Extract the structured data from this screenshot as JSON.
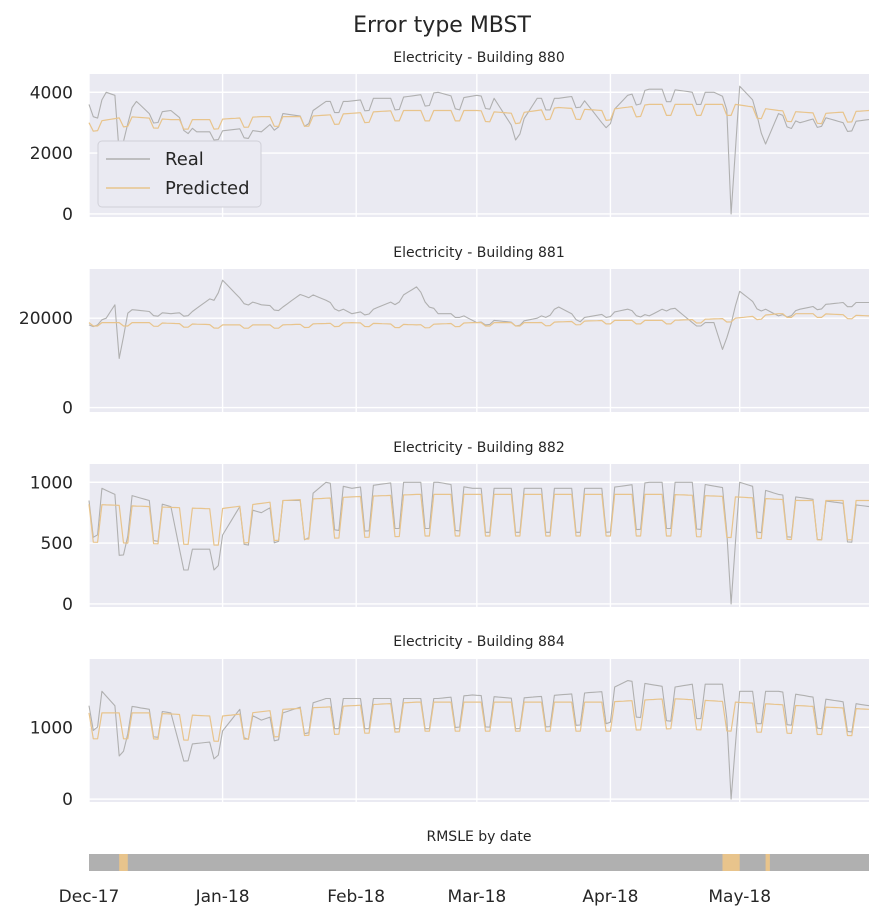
{
  "figure_title": "Error type MBST",
  "colors": {
    "real": "#b0b0b0",
    "predicted": "#e8c48c",
    "panel_bg": "#eaeaf2",
    "grid": "#ffffff",
    "rmsle_base": "#b0b0b0",
    "rmsle_high": "#e8c48c"
  },
  "legend": {
    "real": "Real",
    "predicted": "Predicted"
  },
  "x_axis": {
    "start": "2017-12-01",
    "end": "2018-05-31",
    "tick_labels": [
      "Dec-17",
      "Jan-18",
      "Feb-18",
      "Mar-18",
      "Apr-18",
      "May-18"
    ],
    "tick_dates": [
      "2017-12-01",
      "2018-01-01",
      "2018-02-01",
      "2018-03-01",
      "2018-04-01",
      "2018-05-01"
    ]
  },
  "chart_data": [
    {
      "type": "line",
      "title": "Electricity - Building 880",
      "ylim": [
        -100,
        4600
      ],
      "yticks": [
        0,
        2000,
        4000
      ],
      "ytick_labels": [
        "0",
        "2000",
        "4000"
      ],
      "legend_position": "center-left",
      "series": [
        {
          "name": "Real",
          "color": "#b0b0b0",
          "anchors": [
            [
              "2017-12-01",
              3600
            ],
            [
              "2017-12-03",
              3500
            ],
            [
              "2017-12-05",
              4000
            ],
            [
              "2017-12-07",
              3900
            ],
            [
              "2017-12-08",
              2000
            ],
            [
              "2017-12-10",
              3300
            ],
            [
              "2017-12-12",
              3700
            ],
            [
              "2017-12-15",
              3300
            ],
            [
              "2017-12-20",
              3400
            ],
            [
              "2017-12-26",
              2700
            ],
            [
              "2017-12-30",
              2700
            ],
            [
              "2018-01-05",
              2800
            ],
            [
              "2018-01-10",
              2700
            ],
            [
              "2018-01-15",
              3300
            ],
            [
              "2018-01-20",
              3200
            ],
            [
              "2018-01-25",
              3700
            ],
            [
              "2018-01-30",
              3700
            ],
            [
              "2018-02-05",
              3800
            ],
            [
              "2018-02-10",
              3800
            ],
            [
              "2018-02-15",
              3900
            ],
            [
              "2018-02-20",
              4000
            ],
            [
              "2018-02-25",
              3800
            ],
            [
              "2018-03-01",
              3900
            ],
            [
              "2018-03-05",
              3800
            ],
            [
              "2018-03-10",
              2700
            ],
            [
              "2018-03-15",
              3800
            ],
            [
              "2018-03-20",
              3800
            ],
            [
              "2018-03-25",
              3900
            ],
            [
              "2018-03-30",
              3000
            ],
            [
              "2018-04-05",
              3900
            ],
            [
              "2018-04-10",
              4100
            ],
            [
              "2018-04-15",
              4100
            ],
            [
              "2018-04-20",
              4000
            ],
            [
              "2018-04-25",
              4000
            ],
            [
              "2018-04-28",
              3800
            ],
            [
              "2018-04-29",
              0
            ],
            [
              "2018-05-01",
              4200
            ],
            [
              "2018-05-05",
              3600
            ],
            [
              "2018-05-07",
              2300
            ],
            [
              "2018-05-10",
              3300
            ],
            [
              "2018-05-15",
              3000
            ],
            [
              "2018-05-20",
              3200
            ],
            [
              "2018-05-25",
              3000
            ],
            [
              "2018-05-31",
              3100
            ]
          ]
        },
        {
          "name": "Predicted",
          "color": "#e8c48c",
          "anchors": [
            [
              "2017-12-01",
              3000
            ],
            [
              "2017-12-10",
              3200
            ],
            [
              "2017-12-20",
              3100
            ],
            [
              "2017-12-30",
              3100
            ],
            [
              "2018-01-10",
              3200
            ],
            [
              "2018-01-20",
              3200
            ],
            [
              "2018-01-30",
              3300
            ],
            [
              "2018-02-10",
              3400
            ],
            [
              "2018-02-20",
              3400
            ],
            [
              "2018-03-01",
              3400
            ],
            [
              "2018-03-10",
              3300
            ],
            [
              "2018-03-20",
              3500
            ],
            [
              "2018-03-30",
              3400
            ],
            [
              "2018-04-10",
              3600
            ],
            [
              "2018-04-20",
              3600
            ],
            [
              "2018-04-30",
              3600
            ],
            [
              "2018-05-10",
              3400
            ],
            [
              "2018-05-20",
              3300
            ],
            [
              "2018-05-31",
              3400
            ]
          ]
        }
      ]
    },
    {
      "type": "line",
      "title": "Electricity - Building 881",
      "ylim": [
        -1000,
        31000
      ],
      "yticks": [
        0,
        20000
      ],
      "ytick_labels": [
        "0",
        "20000"
      ],
      "series": [
        {
          "name": "Real",
          "color": "#b0b0b0",
          "anchors": [
            [
              "2017-12-01",
              18500
            ],
            [
              "2017-12-05",
              20000
            ],
            [
              "2017-12-07",
              23000
            ],
            [
              "2017-12-08",
              11000
            ],
            [
              "2017-12-10",
              22000
            ],
            [
              "2017-12-15",
              21500
            ],
            [
              "2017-12-20",
              21000
            ],
            [
              "2017-12-25",
              21500
            ],
            [
              "2017-12-30",
              25000
            ],
            [
              "2018-01-01",
              28500
            ],
            [
              "2018-01-05",
              24500
            ],
            [
              "2018-01-10",
              23000
            ],
            [
              "2018-01-15",
              22500
            ],
            [
              "2018-01-20",
              26000
            ],
            [
              "2018-01-25",
              24000
            ],
            [
              "2018-01-31",
              21000
            ],
            [
              "2018-02-05",
              22000
            ],
            [
              "2018-02-10",
              24000
            ],
            [
              "2018-02-15",
              27000
            ],
            [
              "2018-02-20",
              21000
            ],
            [
              "2018-02-25",
              21000
            ],
            [
              "2018-03-01",
              19000
            ],
            [
              "2018-03-05",
              19500
            ],
            [
              "2018-03-10",
              19000
            ],
            [
              "2018-03-15",
              20000
            ],
            [
              "2018-03-20",
              22500
            ],
            [
              "2018-03-25",
              20000
            ],
            [
              "2018-03-31",
              21000
            ],
            [
              "2018-04-05",
              22000
            ],
            [
              "2018-04-10",
              20500
            ],
            [
              "2018-04-15",
              23000
            ],
            [
              "2018-04-20",
              19000
            ],
            [
              "2018-04-25",
              19000
            ],
            [
              "2018-04-27",
              13000
            ],
            [
              "2018-05-01",
              26000
            ],
            [
              "2018-05-05",
              23000
            ],
            [
              "2018-05-10",
              20500
            ],
            [
              "2018-05-15",
              22000
            ],
            [
              "2018-05-20",
              23000
            ],
            [
              "2018-05-25",
              23500
            ],
            [
              "2018-05-31",
              23500
            ]
          ]
        },
        {
          "name": "Predicted",
          "color": "#e8c48c",
          "anchors": [
            [
              "2017-12-01",
              19000
            ],
            [
              "2017-12-15",
              19000
            ],
            [
              "2017-12-31",
              18500
            ],
            [
              "2018-01-15",
              18500
            ],
            [
              "2018-01-31",
              19000
            ],
            [
              "2018-02-15",
              18500
            ],
            [
              "2018-02-28",
              19000
            ],
            [
              "2018-03-15",
              19000
            ],
            [
              "2018-03-31",
              19500
            ],
            [
              "2018-04-15",
              19500
            ],
            [
              "2018-04-30",
              20000
            ],
            [
              "2018-05-10",
              21000
            ],
            [
              "2018-05-20",
              21000
            ],
            [
              "2018-05-31",
              20500
            ]
          ]
        }
      ]
    },
    {
      "type": "line",
      "title": "Electricity - Building 882",
      "ylim": [
        -25,
        1150
      ],
      "yticks": [
        0,
        500,
        1000
      ],
      "ytick_labels": [
        "0",
        "500",
        "1000"
      ],
      "series": [
        {
          "name": "Real",
          "color": "#b0b0b0",
          "anchors": [
            [
              "2017-12-01",
              850
            ],
            [
              "2017-12-04",
              950
            ],
            [
              "2017-12-07",
              900
            ],
            [
              "2017-12-08",
              400
            ],
            [
              "2017-12-10",
              900
            ],
            [
              "2017-12-15",
              850
            ],
            [
              "2017-12-20",
              800
            ],
            [
              "2017-12-22",
              450
            ],
            [
              "2017-12-30",
              450
            ],
            [
              "2018-01-05",
              800
            ],
            [
              "2018-01-10",
              750
            ],
            [
              "2018-01-15",
              850
            ],
            [
              "2018-01-20",
              850
            ],
            [
              "2018-01-25",
              1000
            ],
            [
              "2018-01-31",
              950
            ],
            [
              "2018-02-10",
              1000
            ],
            [
              "2018-02-20",
              1000
            ],
            [
              "2018-02-28",
              950
            ],
            [
              "2018-03-10",
              950
            ],
            [
              "2018-03-20",
              950
            ],
            [
              "2018-03-31",
              950
            ],
            [
              "2018-04-10",
              1000
            ],
            [
              "2018-04-20",
              1000
            ],
            [
              "2018-04-28",
              950
            ],
            [
              "2018-04-29",
              0
            ],
            [
              "2018-05-01",
              1000
            ],
            [
              "2018-05-10",
              900
            ],
            [
              "2018-05-20",
              850
            ],
            [
              "2018-05-31",
              800
            ]
          ]
        },
        {
          "name": "Predicted",
          "color": "#e8c48c",
          "anchors": [
            [
              "2017-12-01",
              820
            ],
            [
              "2017-12-15",
              800
            ],
            [
              "2017-12-31",
              780
            ],
            [
              "2018-01-15",
              850
            ],
            [
              "2018-01-31",
              880
            ],
            [
              "2018-02-15",
              900
            ],
            [
              "2018-02-28",
              900
            ],
            [
              "2018-03-15",
              900
            ],
            [
              "2018-03-31",
              900
            ],
            [
              "2018-04-15",
              900
            ],
            [
              "2018-04-30",
              880
            ],
            [
              "2018-05-15",
              850
            ],
            [
              "2018-05-31",
              850
            ]
          ]
        }
      ]
    },
    {
      "type": "line",
      "title": "Electricity - Building 884",
      "ylim": [
        -40,
        1950
      ],
      "yticks": [
        0,
        1000
      ],
      "ytick_labels": [
        "0",
        "1000"
      ],
      "series": [
        {
          "name": "Real",
          "color": "#b0b0b0",
          "anchors": [
            [
              "2017-12-01",
              1300
            ],
            [
              "2017-12-04",
              1500
            ],
            [
              "2017-12-07",
              1300
            ],
            [
              "2017-12-08",
              600
            ],
            [
              "2017-12-10",
              1300
            ],
            [
              "2017-12-15",
              1250
            ],
            [
              "2017-12-20",
              1200
            ],
            [
              "2017-12-22",
              750
            ],
            [
              "2017-12-30",
              800
            ],
            [
              "2018-01-05",
              1250
            ],
            [
              "2018-01-10",
              1100
            ],
            [
              "2018-01-15",
              1200
            ],
            [
              "2018-01-20",
              1300
            ],
            [
              "2018-01-25",
              1400
            ],
            [
              "2018-01-31",
              1400
            ],
            [
              "2018-02-10",
              1400
            ],
            [
              "2018-02-20",
              1400
            ],
            [
              "2018-02-28",
              1450
            ],
            [
              "2018-03-10",
              1400
            ],
            [
              "2018-03-20",
              1450
            ],
            [
              "2018-03-31",
              1500
            ],
            [
              "2018-04-05",
              1650
            ],
            [
              "2018-04-15",
              1550
            ],
            [
              "2018-04-20",
              1600
            ],
            [
              "2018-04-28",
              1600
            ],
            [
              "2018-04-29",
              0
            ],
            [
              "2018-05-01",
              1500
            ],
            [
              "2018-05-10",
              1500
            ],
            [
              "2018-05-20",
              1400
            ],
            [
              "2018-05-31",
              1300
            ]
          ]
        },
        {
          "name": "Predicted",
          "color": "#e8c48c",
          "anchors": [
            [
              "2017-12-01",
              1200
            ],
            [
              "2017-12-15",
              1200
            ],
            [
              "2017-12-31",
              1150
            ],
            [
              "2018-01-15",
              1250
            ],
            [
              "2018-01-31",
              1300
            ],
            [
              "2018-02-15",
              1350
            ],
            [
              "2018-02-28",
              1350
            ],
            [
              "2018-03-15",
              1350
            ],
            [
              "2018-03-31",
              1350
            ],
            [
              "2018-04-15",
              1400
            ],
            [
              "2018-04-30",
              1350
            ],
            [
              "2018-05-15",
              1300
            ],
            [
              "2018-05-31",
              1250
            ]
          ]
        }
      ]
    },
    {
      "type": "heatmap",
      "title": "RMSLE by date",
      "high_periods": [
        [
          "2017-12-08",
          "2017-12-09"
        ],
        [
          "2018-04-27",
          "2018-04-30"
        ],
        [
          "2018-05-07",
          "2018-05-07"
        ]
      ]
    }
  ]
}
